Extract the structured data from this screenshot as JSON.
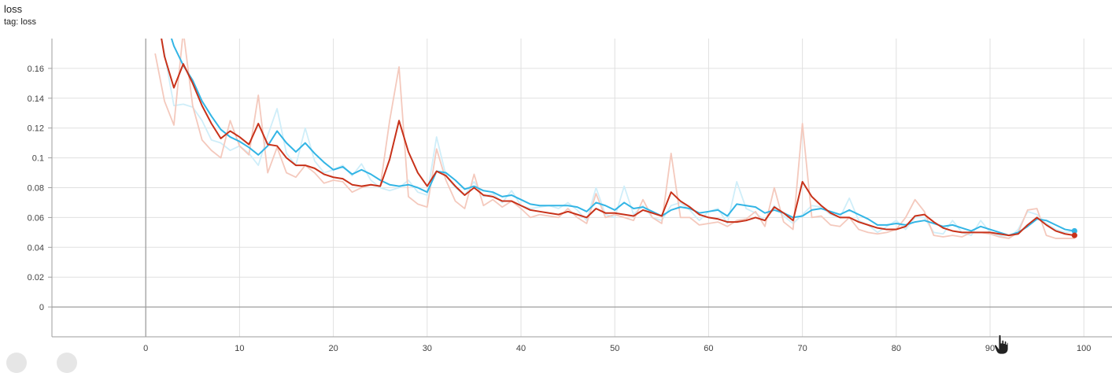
{
  "card": {
    "title": "loss",
    "tag_line": "tag: loss"
  },
  "colors": {
    "series_blue": "#33b5e5",
    "series_blue_light": "#cfeef9",
    "series_red": "#c8321a",
    "series_red_light": "#f4c9bd",
    "grid": "#e0e0e0",
    "zero_axis": "#9e9e9e",
    "frame": "#9e9e9e"
  },
  "chart_data": {
    "type": "line",
    "title": "loss",
    "xlabel": "",
    "ylabel": "",
    "xlim": [
      -10,
      103
    ],
    "ylim": [
      -0.02,
      0.18
    ],
    "grid": true,
    "x_ticks": [
      0,
      10,
      20,
      30,
      40,
      50,
      60,
      70,
      80,
      90,
      100
    ],
    "x_tick_labels": [
      "0",
      "10",
      "20",
      "30",
      "40",
      "50",
      "60",
      "70",
      "80",
      "90",
      "100"
    ],
    "y_ticks": [
      0,
      0.02,
      0.04,
      0.06,
      0.08,
      0.1,
      0.12,
      0.14,
      0.16
    ],
    "y_tick_labels": [
      "0",
      "0.02",
      "0.04",
      "0.06",
      "0.08",
      "0.1",
      "0.12",
      "0.14",
      "0.16"
    ],
    "series": [
      {
        "color": "#33b5e5",
        "raw_color": "#cfeef9",
        "x": [
          1,
          2,
          3,
          4,
          5,
          6,
          7,
          8,
          9,
          10,
          11,
          12,
          13,
          14,
          15,
          16,
          17,
          18,
          19,
          20,
          21,
          22,
          23,
          24,
          25,
          26,
          27,
          28,
          29,
          30,
          31,
          32,
          33,
          34,
          35,
          36,
          37,
          38,
          39,
          40,
          41,
          42,
          43,
          44,
          45,
          46,
          47,
          48,
          49,
          50,
          51,
          52,
          53,
          54,
          55,
          56,
          57,
          58,
          59,
          60,
          61,
          62,
          63,
          64,
          65,
          66,
          67,
          68,
          69,
          70,
          71,
          72,
          73,
          74,
          75,
          76,
          77,
          78,
          79,
          80,
          81,
          82,
          83,
          84,
          85,
          86,
          87,
          88,
          89,
          90,
          91,
          92,
          93,
          94,
          95,
          96,
          97,
          98,
          99
        ],
        "smoothed": [
          0.205,
          0.195,
          0.175,
          0.162,
          0.152,
          0.138,
          0.128,
          0.119,
          0.114,
          0.111,
          0.107,
          0.102,
          0.108,
          0.118,
          0.11,
          0.104,
          0.11,
          0.103,
          0.097,
          0.092,
          0.094,
          0.089,
          0.092,
          0.089,
          0.085,
          0.082,
          0.081,
          0.082,
          0.08,
          0.077,
          0.091,
          0.09,
          0.085,
          0.079,
          0.081,
          0.078,
          0.077,
          0.074,
          0.075,
          0.072,
          0.069,
          0.068,
          0.068,
          0.068,
          0.068,
          0.067,
          0.064,
          0.07,
          0.068,
          0.065,
          0.07,
          0.066,
          0.067,
          0.064,
          0.061,
          0.065,
          0.067,
          0.066,
          0.063,
          0.064,
          0.065,
          0.061,
          0.069,
          0.068,
          0.067,
          0.063,
          0.065,
          0.063,
          0.06,
          0.061,
          0.065,
          0.066,
          0.064,
          0.062,
          0.065,
          0.062,
          0.059,
          0.055,
          0.055,
          0.056,
          0.055,
          0.057,
          0.058,
          0.056,
          0.054,
          0.055,
          0.053,
          0.051,
          0.054,
          0.052,
          0.05,
          0.048,
          0.05,
          0.054,
          0.059,
          0.058,
          0.055,
          0.052,
          0.051
        ],
        "raw": [
          0.2,
          0.17,
          0.135,
          0.136,
          0.134,
          0.125,
          0.112,
          0.11,
          0.105,
          0.108,
          0.103,
          0.095,
          0.115,
          0.133,
          0.103,
          0.095,
          0.12,
          0.098,
          0.09,
          0.092,
          0.095,
          0.088,
          0.096,
          0.085,
          0.08,
          0.078,
          0.08,
          0.085,
          0.077,
          0.075,
          0.114,
          0.088,
          0.08,
          0.075,
          0.084,
          0.074,
          0.076,
          0.07,
          0.078,
          0.068,
          0.066,
          0.067,
          0.068,
          0.066,
          0.07,
          0.065,
          0.058,
          0.08,
          0.062,
          0.06,
          0.081,
          0.062,
          0.068,
          0.06,
          0.058,
          0.068,
          0.07,
          0.065,
          0.058,
          0.064,
          0.066,
          0.056,
          0.084,
          0.066,
          0.063,
          0.058,
          0.068,
          0.061,
          0.056,
          0.062,
          0.068,
          0.067,
          0.062,
          0.06,
          0.073,
          0.058,
          0.055,
          0.05,
          0.054,
          0.058,
          0.052,
          0.06,
          0.06,
          0.05,
          0.049,
          0.058,
          0.05,
          0.048,
          0.058,
          0.05,
          0.048,
          0.046,
          0.052,
          0.064,
          0.062,
          0.056,
          0.052,
          0.05,
          0.051
        ]
      },
      {
        "color": "#c8321a",
        "raw_color": "#f4c9bd",
        "x": [
          1,
          2,
          3,
          4,
          5,
          6,
          7,
          8,
          9,
          10,
          11,
          12,
          13,
          14,
          15,
          16,
          17,
          18,
          19,
          20,
          21,
          22,
          23,
          24,
          25,
          26,
          27,
          28,
          29,
          30,
          31,
          32,
          33,
          34,
          35,
          36,
          37,
          38,
          39,
          40,
          41,
          42,
          43,
          44,
          45,
          46,
          47,
          48,
          49,
          50,
          51,
          52,
          53,
          54,
          55,
          56,
          57,
          58,
          59,
          60,
          61,
          62,
          63,
          64,
          65,
          66,
          67,
          68,
          69,
          70,
          71,
          72,
          73,
          74,
          75,
          76,
          77,
          78,
          79,
          80,
          81,
          82,
          83,
          84,
          85,
          86,
          87,
          88,
          89,
          90,
          91,
          92,
          93,
          94,
          95,
          96,
          97,
          98,
          99
        ],
        "smoothed": [
          0.205,
          0.168,
          0.147,
          0.163,
          0.15,
          0.135,
          0.123,
          0.113,
          0.118,
          0.114,
          0.109,
          0.123,
          0.109,
          0.108,
          0.1,
          0.095,
          0.095,
          0.093,
          0.089,
          0.087,
          0.086,
          0.082,
          0.081,
          0.082,
          0.081,
          0.099,
          0.125,
          0.104,
          0.09,
          0.081,
          0.091,
          0.088,
          0.081,
          0.075,
          0.08,
          0.075,
          0.074,
          0.071,
          0.071,
          0.068,
          0.065,
          0.064,
          0.063,
          0.062,
          0.064,
          0.062,
          0.06,
          0.066,
          0.063,
          0.063,
          0.062,
          0.061,
          0.065,
          0.063,
          0.061,
          0.077,
          0.071,
          0.067,
          0.062,
          0.06,
          0.059,
          0.057,
          0.057,
          0.058,
          0.06,
          0.058,
          0.067,
          0.063,
          0.058,
          0.084,
          0.074,
          0.068,
          0.063,
          0.06,
          0.06,
          0.057,
          0.055,
          0.053,
          0.052,
          0.052,
          0.054,
          0.061,
          0.062,
          0.057,
          0.053,
          0.051,
          0.05,
          0.05,
          0.05,
          0.05,
          0.049,
          0.048,
          0.049,
          0.055,
          0.06,
          0.055,
          0.051,
          0.049,
          0.048
        ],
        "raw": [
          0.17,
          0.138,
          0.122,
          0.185,
          0.135,
          0.112,
          0.105,
          0.1,
          0.125,
          0.108,
          0.102,
          0.142,
          0.09,
          0.107,
          0.09,
          0.087,
          0.095,
          0.09,
          0.083,
          0.085,
          0.084,
          0.077,
          0.08,
          0.082,
          0.081,
          0.125,
          0.161,
          0.074,
          0.069,
          0.067,
          0.106,
          0.085,
          0.071,
          0.066,
          0.089,
          0.068,
          0.072,
          0.067,
          0.071,
          0.066,
          0.06,
          0.062,
          0.061,
          0.06,
          0.066,
          0.06,
          0.056,
          0.076,
          0.06,
          0.062,
          0.06,
          0.058,
          0.072,
          0.06,
          0.056,
          0.103,
          0.06,
          0.06,
          0.055,
          0.056,
          0.057,
          0.054,
          0.058,
          0.059,
          0.064,
          0.054,
          0.08,
          0.057,
          0.052,
          0.123,
          0.06,
          0.061,
          0.055,
          0.054,
          0.06,
          0.052,
          0.05,
          0.049,
          0.05,
          0.052,
          0.06,
          0.072,
          0.064,
          0.048,
          0.047,
          0.048,
          0.047,
          0.05,
          0.05,
          0.049,
          0.047,
          0.046,
          0.05,
          0.065,
          0.066,
          0.048,
          0.046,
          0.046,
          0.046
        ]
      }
    ]
  }
}
